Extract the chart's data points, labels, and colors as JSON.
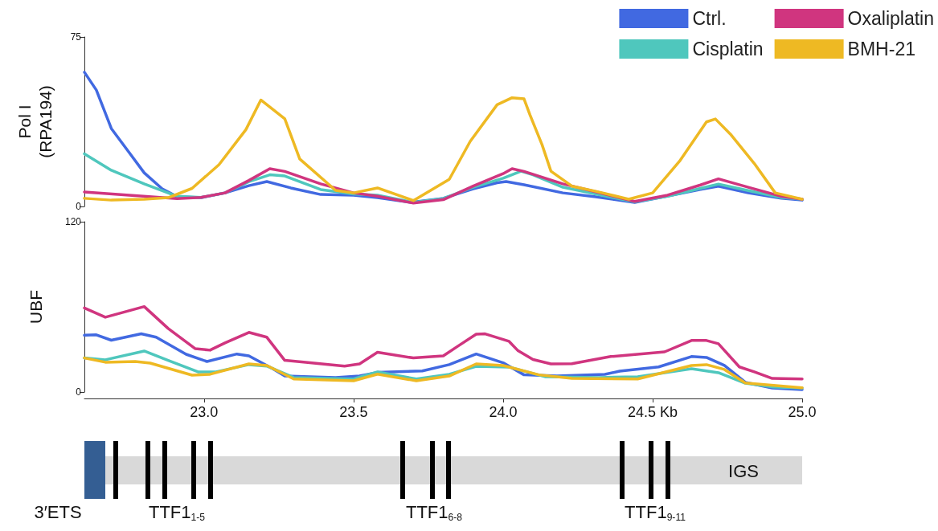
{
  "chart_data": [
    {
      "type": "line",
      "ylabel": "Pol I\n(RPA194)",
      "xlim": [
        22.6,
        25.0
      ],
      "ylim": [
        0,
        75
      ],
      "yticks": [
        0,
        75
      ],
      "tick_labels": "y",
      "legend": "top right",
      "marker": "none",
      "series": [
        {
          "name": "Ctrl.",
          "color": "#4169e1",
          "x": [
            22.6,
            22.64,
            22.69,
            22.75,
            22.8,
            22.86,
            22.91,
            22.99,
            23.07,
            23.15,
            23.21,
            23.29,
            23.39,
            23.5,
            23.58,
            23.69,
            23.8,
            23.9,
            23.98,
            24.01,
            24.07,
            24.2,
            24.31,
            24.44,
            24.55,
            24.66,
            24.72,
            24.82,
            24.93,
            25.0
          ],
          "values": [
            59.4,
            51.5,
            34.5,
            23.8,
            14.9,
            7.8,
            4.3,
            3.9,
            6,
            9.2,
            11,
            8.2,
            5.3,
            5,
            3.9,
            1.8,
            3.6,
            7.8,
            10.5,
            11,
            9.6,
            6,
            4.3,
            1.8,
            4.6,
            7.5,
            9,
            6,
            3.6,
            2.8
          ]
        },
        {
          "name": "Cisplatin",
          "color": "#4fc7bd",
          "x": [
            22.6,
            22.69,
            22.8,
            22.91,
            22.99,
            23.07,
            23.15,
            23.22,
            23.27,
            23.39,
            23.5,
            23.58,
            23.7,
            23.8,
            23.9,
            24.0,
            24.06,
            24.1,
            24.2,
            24.31,
            24.44,
            24.55,
            24.66,
            24.72,
            24.82,
            24.93,
            25.0
          ],
          "values": [
            23.3,
            16,
            10,
            4.5,
            4,
            6,
            11,
            14,
            13.5,
            7.5,
            5.5,
            5,
            1.8,
            3.5,
            8.5,
            12.5,
            15.6,
            14,
            8.5,
            5.5,
            2,
            4.5,
            8,
            9.9,
            7,
            4,
            3.2
          ]
        },
        {
          "name": "Oxaliplatin",
          "color": "#d0357f",
          "x": [
            22.6,
            22.75,
            22.91,
            22.99,
            23.07,
            23.15,
            23.22,
            23.27,
            23.39,
            23.5,
            23.58,
            23.7,
            23.8,
            23.9,
            24.0,
            24.03,
            24.07,
            24.2,
            24.31,
            24.44,
            24.55,
            24.66,
            24.72,
            24.82,
            24.93,
            25.0
          ],
          "values": [
            6.4,
            5,
            3.5,
            4,
            6,
            11.5,
            16.7,
            15.5,
            10,
            6,
            4.5,
            1.5,
            3,
            9,
            14.5,
            16.7,
            15.5,
            10,
            6.5,
            2.2,
            5,
            9.5,
            12.2,
            8.5,
            4.5,
            3.2
          ]
        },
        {
          "name": "BMH-21",
          "color": "#eeb923",
          "x": [
            22.6,
            22.69,
            22.8,
            22.88,
            22.96,
            23.05,
            23.14,
            23.19,
            23.27,
            23.32,
            23.44,
            23.5,
            23.58,
            23.7,
            23.82,
            23.89,
            23.98,
            24.03,
            24.07,
            24.09,
            24.13,
            24.16,
            24.23,
            24.31,
            24.42,
            24.5,
            24.59,
            24.68,
            24.71,
            24.76,
            24.84,
            24.91,
            25.0
          ],
          "values": [
            3.6,
            2.8,
            3.2,
            3.9,
            8,
            18.5,
            34,
            47.1,
            38.8,
            21,
            7.1,
            6,
            8.2,
            2.6,
            12,
            28.8,
            45,
            48.1,
            47.6,
            40.5,
            27.4,
            15.6,
            9,
            6.7,
            3.2,
            6,
            20,
            37.4,
            38.7,
            32,
            19,
            6,
            3.2
          ]
        }
      ]
    },
    {
      "type": "line",
      "ylabel": "UBF",
      "xlim": [
        22.6,
        25.0
      ],
      "xticks": [
        {
          "value": 23,
          "label": "23.0"
        },
        {
          "value": 23.5,
          "label": "23.5"
        },
        {
          "value": 24,
          "label": "24.0"
        },
        {
          "value": 24.5,
          "label": "24.5 Kb"
        },
        {
          "value": 25,
          "label": "25.0"
        }
      ],
      "ylim": [
        0,
        120
      ],
      "yticks": [
        0,
        120
      ],
      "marker": "none",
      "annotations": [
        "3′ETS",
        "TTF1$_{1-5}$",
        "TTF1$_{6-8}$",
        "TTF1$_{9-11}$",
        "IGS"
      ],
      "series": [
        {
          "color": "#4169e1",
          "x": [
            22.6,
            22.64,
            22.69,
            22.79,
            22.84,
            22.94,
            23.01,
            23.11,
            23.15,
            23.23,
            23.27,
            23.44,
            23.52,
            23.58,
            23.73,
            23.82,
            23.91,
            24.0,
            24.07,
            24.18,
            24.34,
            24.39,
            24.52,
            24.63,
            24.68,
            24.74,
            24.81,
            24.9,
            25.0
          ],
          "values": [
            40,
            40.3,
            36.5,
            41,
            38.6,
            26.6,
            21.5,
            26.8,
            25.5,
            16.4,
            11.3,
            10.2,
            11.3,
            13.8,
            14.9,
            19.3,
            26.8,
            20.6,
            12.1,
            11.3,
            12.5,
            14.7,
            17.7,
            25,
            24.4,
            18.7,
            6.8,
            2.8,
            1.7
          ]
        },
        {
          "color": "#4fc7bd",
          "x": [
            22.6,
            22.67,
            22.8,
            22.88,
            22.98,
            23.04,
            23.15,
            23.21,
            23.3,
            23.5,
            23.58,
            23.71,
            23.82,
            23.91,
            24.02,
            24.14,
            24.32,
            24.45,
            24.63,
            24.72,
            24.81,
            24.9,
            25.0
          ],
          "values": [
            24,
            22.7,
            28.9,
            22.3,
            14.2,
            14.2,
            19.3,
            18.3,
            10.2,
            9.2,
            14.2,
            9.2,
            12.5,
            18.1,
            17.6,
            10.8,
            10.2,
            10.8,
            16.4,
            13.6,
            6.2,
            3.6,
            2.8
          ]
        },
        {
          "color": "#d0357f",
          "x": [
            22.6,
            22.67,
            22.8,
            22.88,
            22.97,
            23.02,
            23.07,
            23.15,
            23.21,
            23.27,
            23.34,
            23.47,
            23.52,
            23.58,
            23.7,
            23.8,
            23.85,
            23.91,
            23.94,
            24.02,
            24.05,
            24.1,
            24.16,
            24.23,
            24.36,
            24.54,
            24.63,
            24.68,
            24.72,
            24.79,
            24.84,
            24.9,
            25.0
          ],
          "values": [
            59.2,
            52.7,
            60.2,
            44.8,
            30.6,
            29.5,
            34.6,
            42,
            38.6,
            22.3,
            21,
            18.3,
            19.8,
            28,
            24,
            25.5,
            32.5,
            40.8,
            41,
            35.7,
            29.1,
            22.9,
            19.8,
            20,
            25,
            28.3,
            36.3,
            36.3,
            34,
            17.7,
            14.2,
            9.6,
            9.2
          ]
        },
        {
          "color": "#eeb923",
          "x": [
            22.6,
            22.67,
            22.77,
            22.82,
            22.96,
            23.02,
            23.15,
            23.21,
            23.3,
            23.5,
            23.58,
            23.71,
            23.82,
            23.91,
            24.0,
            24.12,
            24.23,
            24.45,
            24.63,
            24.68,
            24.74,
            24.81,
            25.0
          ],
          "values": [
            24,
            21,
            21.5,
            20.4,
            11.9,
            12.5,
            19.8,
            18.7,
            9.2,
            7.9,
            12.6,
            7.9,
            11.3,
            19.8,
            18.7,
            12.1,
            9.6,
            9.2,
            18.7,
            19.3,
            15.9,
            6.4,
            3
          ]
        }
      ]
    }
  ]
}
